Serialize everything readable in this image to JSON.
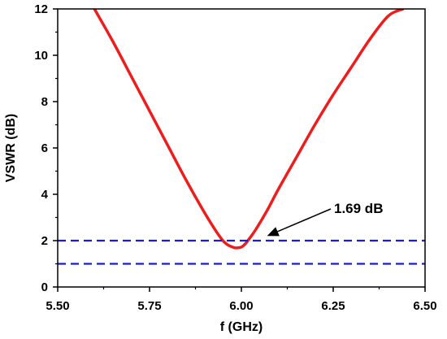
{
  "chart_data": {
    "type": "line",
    "xlabel": "f (GHz)",
    "ylabel": "VSWR (dB)",
    "xlim": [
      5.5,
      6.5
    ],
    "ylim": [
      0,
      12
    ],
    "xticks": [
      "5.50",
      "5.75",
      "6.00",
      "6.25",
      "6.50"
    ],
    "yticks": [
      "0",
      "2",
      "4",
      "6",
      "8",
      "10",
      "12"
    ],
    "grid": false,
    "series": [
      {
        "style": "solid",
        "color": "#ee1c1c",
        "x": [
          5.6,
          5.65,
          5.7,
          5.75,
          5.8,
          5.85,
          5.9,
          5.94,
          5.96,
          5.98,
          5.99,
          6.0,
          6.01,
          6.02,
          6.04,
          6.07,
          6.1,
          6.15,
          6.2,
          6.25,
          6.3,
          6.35,
          6.4,
          6.44
        ],
        "y": [
          12.0,
          10.6,
          9.1,
          7.6,
          6.1,
          4.6,
          3.2,
          2.2,
          1.85,
          1.7,
          1.69,
          1.72,
          1.85,
          2.05,
          2.5,
          3.3,
          4.2,
          5.6,
          7.0,
          8.3,
          9.5,
          10.7,
          11.7,
          12.0
        ]
      },
      {
        "style": "dashed",
        "color": "#1a1adb",
        "x": [
          5.5,
          6.5
        ],
        "y": [
          2.0,
          2.0
        ]
      },
      {
        "style": "dashed",
        "color": "#1a1adb",
        "x": [
          5.5,
          6.5
        ],
        "y": [
          1.0,
          1.0
        ]
      }
    ],
    "annotations": [
      {
        "text": "1.69 dB",
        "arrow_to": {
          "x": 6.07,
          "y": 2.2
        }
      }
    ]
  }
}
